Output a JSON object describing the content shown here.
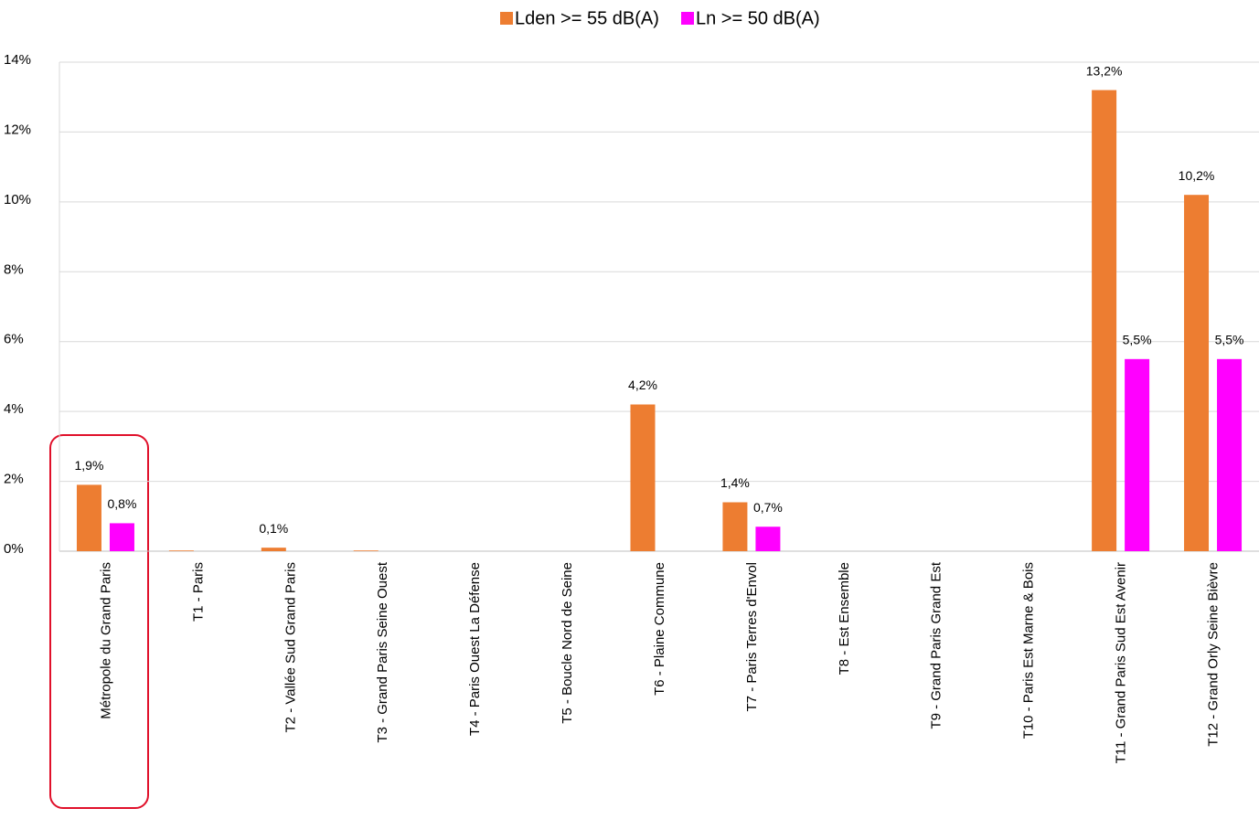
{
  "chart_data": {
    "type": "bar",
    "categories": [
      "Métropole du Grand Paris",
      "T1 - Paris",
      "T2 - Vallée Sud Grand Paris",
      "T3 - Grand Paris Seine Ouest",
      "T4 - Paris Ouest La Défense",
      "T5 - Boucle Nord de Seine",
      "T6 - Plaine Commune",
      "T7 - Paris Terres d'Envol",
      "T8 - Est Ensemble",
      "T9 - Grand Paris Grand Est",
      "T10 - Paris Est Marne & Bois",
      "T11 - Grand Paris Sud Est Avenir",
      "T12 - Grand Orly Seine Bièvre"
    ],
    "series": [
      {
        "name": "Lden >= 55 dB(A)",
        "color": "#ed7d31",
        "values": [
          1.9,
          0.02,
          0.1,
          0.02,
          0,
          0,
          4.2,
          1.4,
          0,
          0,
          0,
          13.2,
          10.2
        ],
        "value_labels": [
          "1,9%",
          null,
          "0,1%",
          null,
          null,
          null,
          "4,2%",
          "1,4%",
          null,
          null,
          null,
          "13,2%",
          "10,2%"
        ]
      },
      {
        "name": "Ln >= 50 dB(A)",
        "color": "#ff00ff",
        "values": [
          0.8,
          0,
          0,
          0,
          0,
          0,
          0,
          0.7,
          0,
          0,
          0,
          5.5,
          5.5
        ],
        "value_labels": [
          "0,8%",
          null,
          null,
          null,
          null,
          null,
          null,
          "0,7%",
          null,
          null,
          null,
          "5,5%",
          "5,5%"
        ]
      }
    ],
    "ylim": [
      0,
      14
    ],
    "yticks": [
      {
        "value": 0,
        "label": "0%"
      },
      {
        "value": 2,
        "label": "2%"
      },
      {
        "value": 4,
        "label": "4%"
      },
      {
        "value": 6,
        "label": "6%"
      },
      {
        "value": 8,
        "label": "8%"
      },
      {
        "value": 10,
        "label": "10%"
      },
      {
        "value": 12,
        "label": "12%"
      },
      {
        "value": 14,
        "label": "14%"
      }
    ],
    "grid": true,
    "legend": "top"
  }
}
